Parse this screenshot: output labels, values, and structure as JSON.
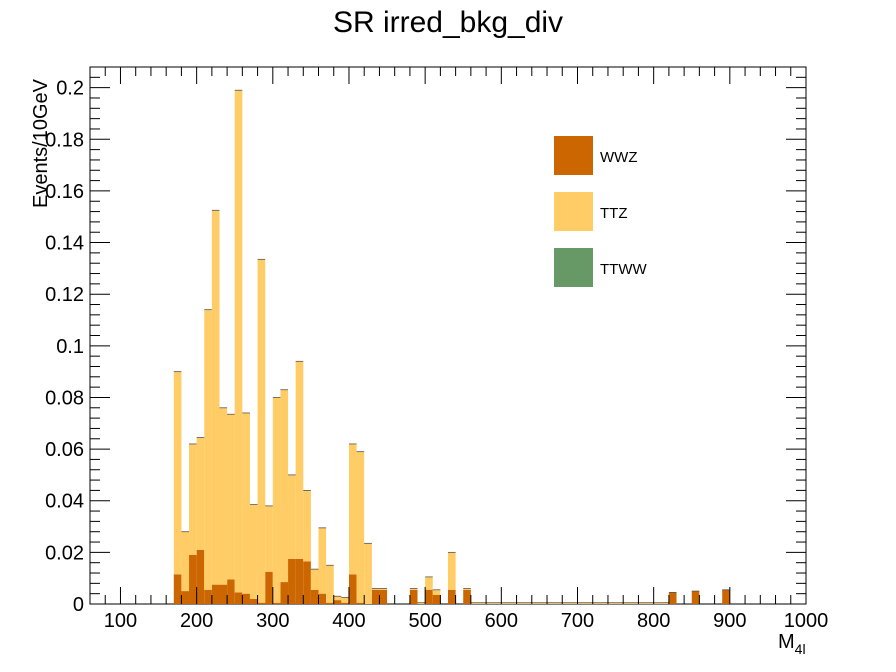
{
  "chart_data": {
    "type": "bar",
    "stacked": true,
    "title": "SR irred_bkg_div",
    "xlabel": "M",
    "xlabel_sub": "4l",
    "ylabel": "Events/10GeV",
    "xlim": [
      60,
      1000
    ],
    "ylim": [
      0,
      0.208
    ],
    "bin_width": 10,
    "x_ticks": [
      100,
      200,
      300,
      400,
      500,
      600,
      700,
      800,
      900,
      1000
    ],
    "x_tick_labels": [
      "100",
      "200",
      "300",
      "400",
      "500",
      "600",
      "700",
      "800",
      "900",
      "1000"
    ],
    "y_ticks": [
      0,
      0.02,
      0.04,
      0.06,
      0.08,
      0.1,
      0.12,
      0.14,
      0.16,
      0.18,
      0.2
    ],
    "y_tick_labels": [
      "0",
      "0.02",
      "0.04",
      "0.06",
      "0.08",
      "0.1",
      "0.12",
      "0.14",
      "0.16",
      "0.18",
      "0.2"
    ],
    "legend_position": "top-right",
    "series": [
      {
        "name": "WWZ",
        "color": "#cc6600",
        "bins": [
          [
            170,
            0.0115
          ],
          [
            180,
            0.005
          ],
          [
            190,
            0.019
          ],
          [
            200,
            0.021
          ],
          [
            210,
            0.0055
          ],
          [
            220,
            0.0075
          ],
          [
            230,
            0.0075
          ],
          [
            240,
            0.0095
          ],
          [
            250,
            0.0045
          ],
          [
            260,
            0.004
          ],
          [
            270,
            0.002
          ],
          [
            280,
            0.0005
          ],
          [
            290,
            0.0125
          ],
          [
            300,
            0.0005
          ],
          [
            310,
            0.0085
          ],
          [
            320,
            0.0175
          ],
          [
            330,
            0.0175
          ],
          [
            340,
            0.0165
          ],
          [
            350,
            0.0055
          ],
          [
            360,
            0.004
          ],
          [
            370,
            0.0005
          ],
          [
            380,
            0.0015
          ],
          [
            390,
            0.0005
          ],
          [
            400,
            0.0115
          ],
          [
            410,
            0.0005
          ],
          [
            430,
            0.0055
          ],
          [
            440,
            0.0055
          ],
          [
            480,
            0.0055
          ],
          [
            500,
            0.0055
          ],
          [
            510,
            0.0035
          ],
          [
            530,
            0.0055
          ],
          [
            550,
            0.0055
          ],
          [
            820,
            0.0045
          ],
          [
            850,
            0.005
          ],
          [
            890,
            0.0055
          ]
        ]
      },
      {
        "name": "TTZ",
        "color": "#ffcc66",
        "bins": [
          [
            170,
            0.0785
          ],
          [
            180,
            0.023
          ],
          [
            190,
            0.043
          ],
          [
            200,
            0.0435
          ],
          [
            210,
            0.1085
          ],
          [
            220,
            0.145
          ],
          [
            230,
            0.0685
          ],
          [
            240,
            0.064
          ],
          [
            250,
            0.1945
          ],
          [
            260,
            0.07
          ],
          [
            270,
            0.0365
          ],
          [
            280,
            0.133
          ],
          [
            290,
            0.0255
          ],
          [
            300,
            0.0795
          ],
          [
            310,
            0.0745
          ],
          [
            320,
            0.0325
          ],
          [
            330,
            0.0765
          ],
          [
            340,
            0.0275
          ],
          [
            350,
            0.008
          ],
          [
            360,
            0.0255
          ],
          [
            370,
            0.0145
          ],
          [
            380,
            0.0015
          ],
          [
            390,
            0.002
          ],
          [
            400,
            0.0505
          ],
          [
            410,
            0.0585
          ],
          [
            420,
            0.0235
          ],
          [
            430,
            0.0005
          ],
          [
            440,
            0.0005
          ],
          [
            480,
            0.0005
          ],
          [
            490,
            0.0005
          ],
          [
            500,
            0.005
          ],
          [
            510,
            0.002
          ],
          [
            530,
            0.0145
          ],
          [
            550,
            0.0005
          ],
          [
            560,
            0.0005
          ],
          [
            570,
            0.0005
          ],
          [
            580,
            0.0005
          ],
          [
            590,
            0.0005
          ],
          [
            600,
            0.0005
          ],
          [
            610,
            0.0005
          ],
          [
            620,
            0.0005
          ],
          [
            630,
            0.0005
          ],
          [
            640,
            0.0005
          ],
          [
            650,
            0.0005
          ],
          [
            660,
            0.0005
          ],
          [
            670,
            0.0005
          ],
          [
            680,
            0.0005
          ],
          [
            690,
            0.0005
          ],
          [
            700,
            0.0005
          ],
          [
            710,
            0.0005
          ],
          [
            720,
            0.0005
          ],
          [
            730,
            0.0005
          ],
          [
            740,
            0.0005
          ],
          [
            750,
            0.0005
          ],
          [
            760,
            0.0005
          ],
          [
            770,
            0.0005
          ],
          [
            780,
            0.0005
          ],
          [
            790,
            0.0005
          ],
          [
            800,
            0.0005
          ],
          [
            810,
            0.0005
          ]
        ]
      },
      {
        "name": "TTWW",
        "color": "#669966",
        "bins": []
      }
    ]
  }
}
